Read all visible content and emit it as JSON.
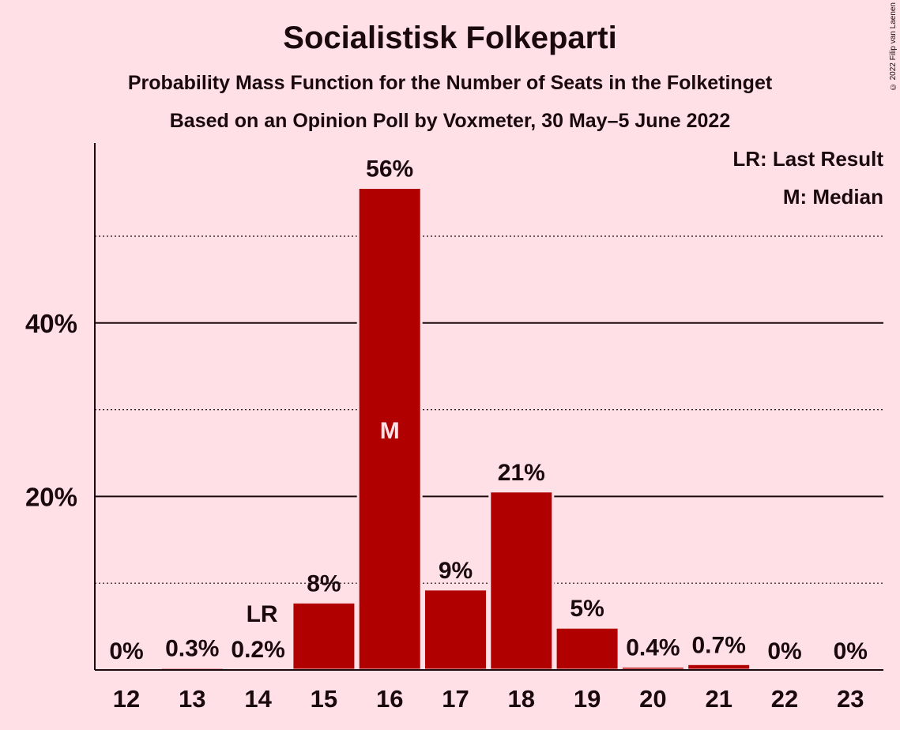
{
  "chart_data": {
    "type": "bar",
    "title": "Socialistisk Folkeparti",
    "subtitle": "Probability Mass Function for the Number of Seats in the Folketinget",
    "subtitle2": "Based on an Opinion Poll by Voxmeter, 30 May–5 June 2022",
    "copyright": "© 2022 Filip van Laenen",
    "categories": [
      "12",
      "13",
      "14",
      "15",
      "16",
      "17",
      "18",
      "19",
      "20",
      "21",
      "22",
      "23"
    ],
    "values": [
      0,
      0.3,
      0.2,
      7.8,
      55.6,
      9.3,
      20.6,
      4.9,
      0.4,
      0.7,
      0,
      0
    ],
    "value_labels": [
      "0%",
      "0.3%",
      "0.2%",
      "8%",
      "56%",
      "9%",
      "21%",
      "5%",
      "0.4%",
      "0.7%",
      "0%",
      "0%"
    ],
    "ylim": [
      0,
      60
    ],
    "yticks": [
      20,
      40
    ],
    "ytick_labels": [
      "20%",
      "40%"
    ],
    "minor_gridlines": [
      10,
      30,
      50
    ],
    "grid": true,
    "bar_color": "#b00000",
    "background_color": "#ffe0e6",
    "last_result_category": "14",
    "last_result_marker": "LR",
    "median_category": "16",
    "median_marker": "M",
    "legend": {
      "position": "top-right",
      "items": [
        "LR: Last Result",
        "M: Median"
      ]
    }
  }
}
